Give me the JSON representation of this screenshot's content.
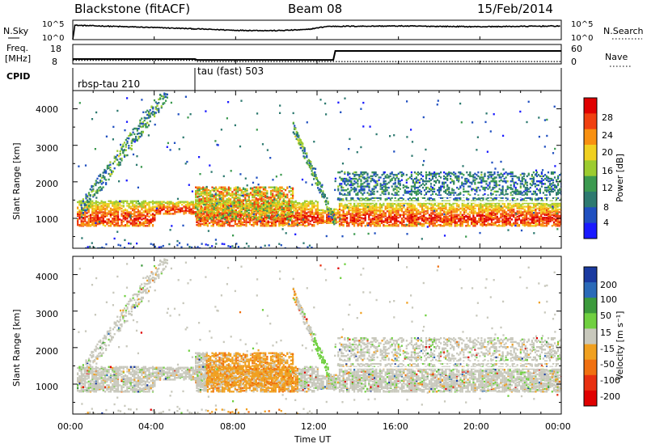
{
  "header": {
    "station": "Blackstone (fitACF)",
    "beam": "Beam 08",
    "date": "15/Feb/2014"
  },
  "noise_panel": {
    "left_label": "N.Sky",
    "right_label": "N.Search",
    "left_ticks": [
      "10^5",
      "10^0"
    ],
    "right_ticks": [
      "10^5",
      "10^0"
    ]
  },
  "freq_panel": {
    "left_label_1": "Freq.",
    "left_label_2": "[MHz]",
    "right_label": "Nave",
    "left_ticks": [
      "18",
      "8"
    ],
    "right_ticks": [
      "60",
      "0"
    ]
  },
  "cpid": {
    "label": "CPID",
    "segments": [
      {
        "name": "rbsp-tau 210",
        "start_h": 0,
        "end_h": 6
      },
      {
        "name": "tau (fast) 503",
        "start_h": 6,
        "end_h": 24
      }
    ]
  },
  "x_axis": {
    "label": "Time UT",
    "ticks": [
      "00:00",
      "04:00",
      "08:00",
      "12:00",
      "16:00",
      "20:00",
      "00:00"
    ]
  },
  "power_panel": {
    "ylabel": "Slant Range [km]",
    "yticks": [
      "1000",
      "2000",
      "3000",
      "4000"
    ],
    "colorbar_label": "Power [dB]",
    "colorbar_ticks": [
      "4",
      "8",
      "12",
      "16",
      "20",
      "24",
      "28"
    ]
  },
  "velocity_panel": {
    "ylabel": "Slant Range [km]",
    "yticks": [
      "1000",
      "2000",
      "3000",
      "4000"
    ],
    "colorbar_label": "Velocity [m s⁻¹]",
    "colorbar_ticks": [
      "200",
      "100",
      "50",
      "15",
      "-15",
      "-50",
      "-100",
      "-200"
    ]
  },
  "chart_data": {
    "type": "heatmap",
    "x_range_hours": [
      0,
      24
    ],
    "y_range_km": [
      180,
      4500
    ],
    "power_scale_db": [
      0,
      32
    ],
    "power_colors": [
      "#1a1aff",
      "#2050c0",
      "#2e7a70",
      "#3c9a50",
      "#9ccc30",
      "#f0d020",
      "#f89010",
      "#f04010",
      "#e00000"
    ],
    "velocity_colors": [
      "#1a3aa0",
      "#2a6ab8",
      "#3c9a3c",
      "#70d040",
      "#c8c8bc",
      "#f0a020",
      "#f07010",
      "#e83010",
      "#e00000"
    ],
    "noise_sky_log10": [
      [
        0,
        0
      ],
      [
        0.1,
        3.8
      ],
      [
        2,
        3.5
      ],
      [
        5,
        3.0
      ],
      [
        8,
        2.4
      ],
      [
        10,
        2.3
      ],
      [
        11.5,
        2.6
      ],
      [
        12.5,
        3.5
      ],
      [
        16,
        3.6
      ],
      [
        20,
        3.4
      ],
      [
        24,
        3.6
      ]
    ],
    "frequency_mhz": [
      [
        0,
        10.2
      ],
      [
        6,
        10.2
      ],
      [
        6.1,
        9.6
      ],
      [
        12.8,
        9.6
      ],
      [
        12.9,
        15.8
      ],
      [
        24,
        15.8
      ]
    ],
    "nave": [
      [
        0,
        8
      ],
      [
        6,
        8
      ],
      [
        6.1,
        3
      ],
      [
        24,
        3
      ]
    ],
    "scatter_features": [
      {
        "feature": "main echo band",
        "start_h": 0,
        "end_h": 24,
        "range_km": [
          800,
          1500
        ],
        "power_db": 28
      },
      {
        "feature": "rising arc",
        "start_h": 0.5,
        "end_h": 4.5,
        "range_km": [
          1200,
          4500
        ],
        "power_db": 14
      },
      {
        "feature": "rising arc",
        "start_h": 11.0,
        "end_h": 12.8,
        "range_km": [
          850,
          3500
        ],
        "power_db": 12
      },
      {
        "feature": "upper band",
        "start_h": 13,
        "end_h": 24,
        "range_km": [
          1500,
          2300
        ],
        "power_db": 10
      }
    ]
  }
}
